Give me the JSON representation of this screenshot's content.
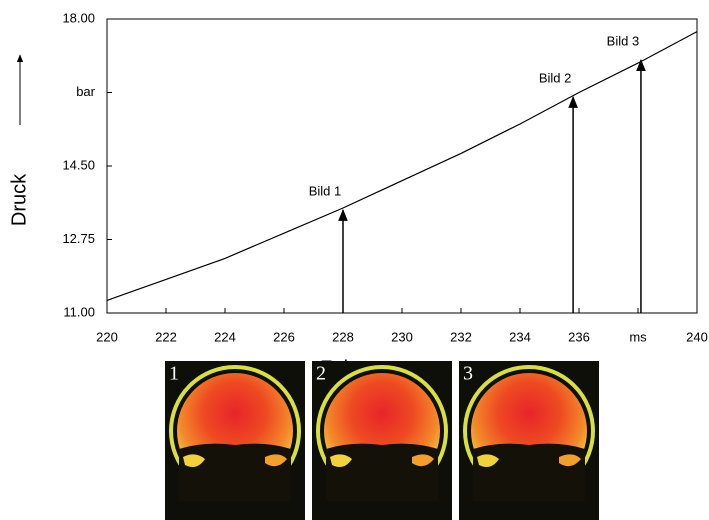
{
  "chart_data": {
    "type": "line",
    "x": [
      220,
      222,
      224,
      226,
      228,
      230,
      232,
      234,
      236,
      238,
      240
    ],
    "values": [
      11.3,
      11.8,
      12.3,
      12.9,
      13.5,
      14.15,
      14.8,
      15.5,
      16.25,
      16.95,
      17.7
    ],
    "color": "#000000",
    "xlim": [
      220,
      240
    ],
    "xticks": [
      220,
      222,
      224,
      226,
      228,
      230,
      232,
      234,
      236,
      {
        "value": 238,
        "label": "ms"
      },
      240
    ],
    "ylim": [
      11,
      18
    ],
    "yticks": [
      {
        "value": 11,
        "label": "11.00"
      },
      {
        "value": 12.75,
        "label": "12.75"
      },
      {
        "value": 14.5,
        "label": "14.50"
      },
      {
        "value": 16.25,
        "label": "bar"
      },
      {
        "value": 18,
        "label": "18.00"
      }
    ],
    "xlabel": "Zeit",
    "ylabel": "Druck",
    "annotations": [
      {
        "label": "Bild 1",
        "x": 228,
        "y": 13.45
      },
      {
        "label": "Bild 2",
        "x": 235.8,
        "y": 16.14
      },
      {
        "label": "Bild 3",
        "x": 238.1,
        "y": 17.02
      }
    ],
    "images": [
      {
        "label": "1"
      },
      {
        "label": "2"
      },
      {
        "label": "3"
      }
    ]
  }
}
